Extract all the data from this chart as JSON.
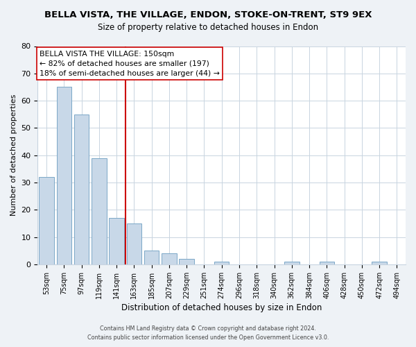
{
  "title": "BELLA VISTA, THE VILLAGE, ENDON, STOKE-ON-TRENT, ST9 9EX",
  "subtitle": "Size of property relative to detached houses in Endon",
  "xlabel": "Distribution of detached houses by size in Endon",
  "ylabel": "Number of detached properties",
  "bar_labels": [
    "53sqm",
    "75sqm",
    "97sqm",
    "119sqm",
    "141sqm",
    "163sqm",
    "185sqm",
    "207sqm",
    "229sqm",
    "251sqm",
    "274sqm",
    "296sqm",
    "318sqm",
    "340sqm",
    "362sqm",
    "384sqm",
    "406sqm",
    "428sqm",
    "450sqm",
    "472sqm",
    "494sqm"
  ],
  "bar_values": [
    32,
    65,
    55,
    39,
    17,
    15,
    5,
    4,
    2,
    0,
    1,
    0,
    0,
    0,
    1,
    0,
    1,
    0,
    0,
    1,
    0
  ],
  "bar_color": "#c8d8e8",
  "bar_edge_color": "#7ba7c7",
  "vline_x": 4.5,
  "vline_color": "#cc0000",
  "annotation_title": "BELLA VISTA THE VILLAGE: 150sqm",
  "annotation_line1": "← 82% of detached houses are smaller (197)",
  "annotation_line2": "18% of semi-detached houses are larger (44) →",
  "ylim": [
    0,
    80
  ],
  "yticks": [
    0,
    10,
    20,
    30,
    40,
    50,
    60,
    70,
    80
  ],
  "footer1": "Contains HM Land Registry data © Crown copyright and database right 2024.",
  "footer2": "Contains public sector information licensed under the Open Government Licence v3.0.",
  "bg_color": "#eef2f6",
  "plot_bg_color": "#ffffff",
  "grid_color": "#c8d4e0",
  "title_fontsize": 9.5,
  "subtitle_fontsize": 8.5
}
